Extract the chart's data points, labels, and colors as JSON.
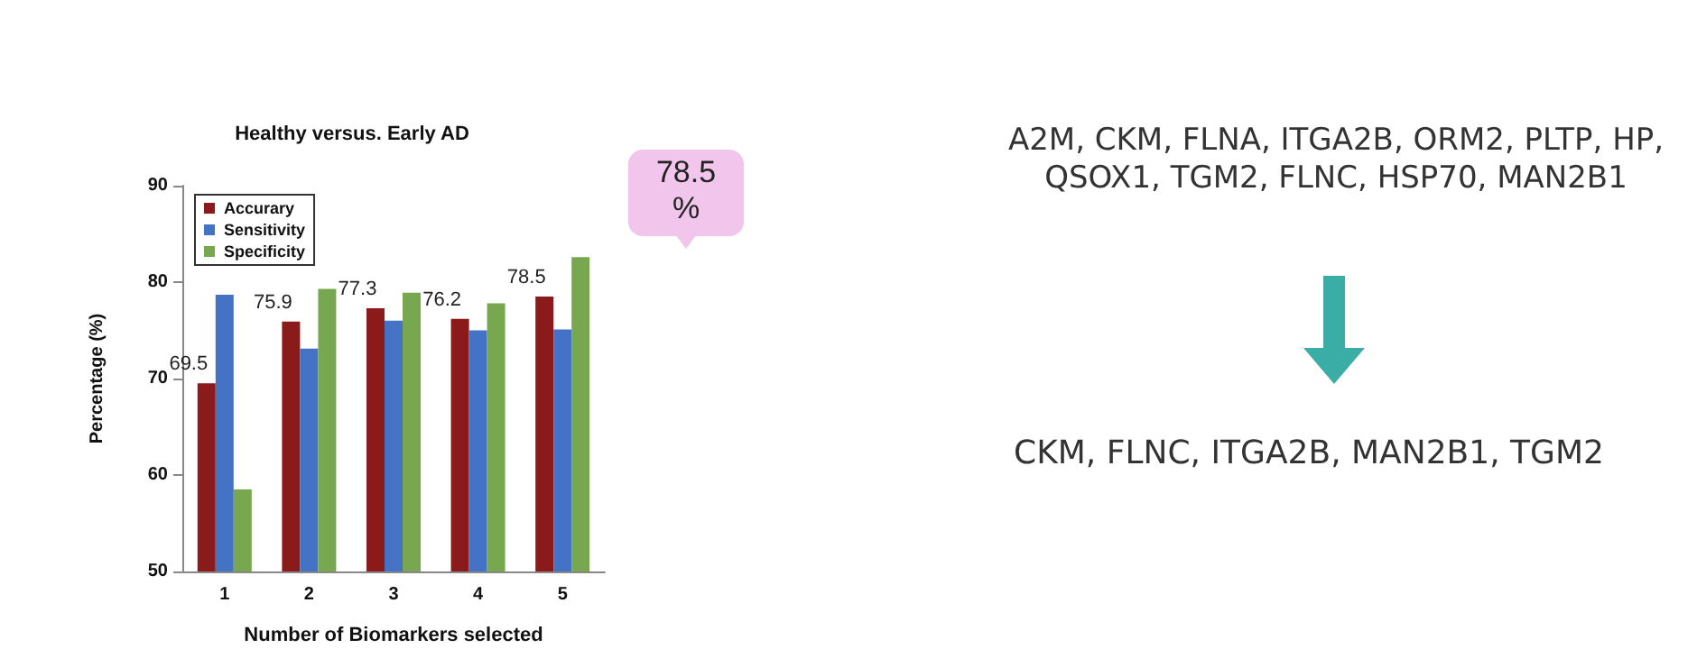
{
  "chart_data": {
    "type": "bar",
    "title": "Healthy versus. Early AD",
    "xlabel": "Number of Biomarkers selected",
    "ylabel": "Percentage (%)",
    "categories": [
      "1",
      "2",
      "3",
      "4",
      "5"
    ],
    "series": [
      {
        "name": "Accurary",
        "color": "#8b1a1a",
        "values": [
          69.5,
          75.9,
          77.3,
          76.2,
          78.5
        ],
        "value_labels": [
          "69.5",
          "75.9",
          "77.3",
          "76.2",
          "78.5"
        ]
      },
      {
        "name": "Sensitivity",
        "color": "#4472c4",
        "values": [
          78.7,
          73.1,
          76,
          75,
          75.1
        ]
      },
      {
        "name": "Specificity",
        "color": "#77a84f",
        "values": [
          58.5,
          79.3,
          78.9,
          77.8,
          82.6
        ]
      }
    ],
    "ylim": [
      50,
      90
    ],
    "yticks": [
      50,
      60,
      70,
      80,
      90
    ],
    "grid": false,
    "legend": "top left",
    "annotations": [
      "78.5 %",
      "A2M, CKM, FLNA, ITGA2B, ORM2, PLTP, HP, QSOX1, TGM2, FLNC, HSP70, MAN2B1",
      "CKM, FLNC, ITGA2B, MAN2B1, TGM2"
    ]
  }
}
